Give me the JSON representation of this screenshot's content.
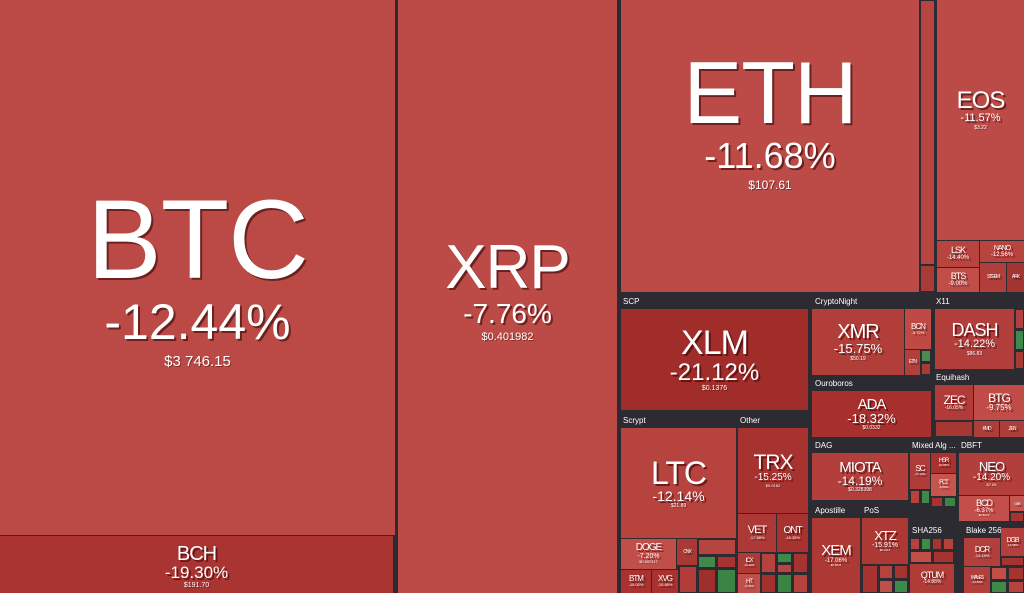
{
  "groups": {
    "scp": "SCP",
    "cryptonight": "CryptoNight",
    "x11": "X11",
    "ouroboros": "Ouroboros",
    "equihash": "Equihash",
    "scrypt": "Scrypt",
    "other": "Other",
    "dag": "DAG",
    "mixed": "Mixed Alg ...",
    "dbft": "DBFT",
    "apostille": "Apostille",
    "pos": "PoS",
    "sha256": "SHA256",
    "blake256": "Blake 256"
  },
  "coins": {
    "btc": {
      "sym": "BTC",
      "chg": "-12.44%",
      "price": "$3 746.15"
    },
    "bch": {
      "sym": "BCH",
      "chg": "-19.30%",
      "price": "$191.70"
    },
    "xrp": {
      "sym": "XRP",
      "chg": "-7.76%",
      "price": "$0.401982"
    },
    "eth": {
      "sym": "ETH",
      "chg": "-11.68%",
      "price": "$107.61"
    },
    "eos": {
      "sym": "EOS",
      "chg": "-11.57%",
      "price": "$3.22"
    },
    "lsk": {
      "sym": "LSK",
      "chg": "-14.40%"
    },
    "nano": {
      "sym": "NANO",
      "chg": "-12.56%"
    },
    "bts": {
      "sym": "BTS",
      "chg": "-9.00%"
    },
    "steem": {
      "sym": "STEEM"
    },
    "ark": {
      "sym": "ARK"
    },
    "xlm": {
      "sym": "XLM",
      "chg": "-21.12%",
      "price": "$0.1376"
    },
    "xmr": {
      "sym": "XMR",
      "chg": "-15.75%",
      "price": "$50.19"
    },
    "bcn": {
      "sym": "BCN",
      "chg": "-9.72%"
    },
    "etn": {
      "sym": "ETN"
    },
    "dash": {
      "sym": "DASH",
      "chg": "-14.22%",
      "price": "$86.83"
    },
    "ada": {
      "sym": "ADA",
      "chg": "-18.32%",
      "price": "$0.0332"
    },
    "zec": {
      "sym": "ZEC",
      "chg": "-16.05%"
    },
    "btg": {
      "sym": "BTG",
      "chg": "-9.75%"
    },
    "kmd": {
      "sym": "KMD"
    },
    "zen": {
      "sym": "ZEN"
    },
    "ltc": {
      "sym": "LTC",
      "chg": "-12.14%",
      "price": "$21.89"
    },
    "doge": {
      "sym": "DOGE",
      "chg": "-7.20%",
      "price": "$0.002117"
    },
    "cnx": {
      "sym": "CNX"
    },
    "btm": {
      "sym": "BTM",
      "chg": "-15.02%"
    },
    "xvg": {
      "sym": "XVG",
      "chg": "-15.85%"
    },
    "trx": {
      "sym": "TRX",
      "chg": "-15.25%",
      "price": "$0.0162"
    },
    "vet": {
      "sym": "VET",
      "chg": "-17.58%"
    },
    "ont": {
      "sym": "ONT",
      "chg": "-18.35%"
    },
    "icx": {
      "sym": "ICX",
      "chg": "-16.48%"
    },
    "ht": {
      "sym": "HT",
      "chg": "-6.76%"
    },
    "miota": {
      "sym": "MIOTA",
      "chg": "-14.19%",
      "price": "$0.328398"
    },
    "sc": {
      "sym": "SC",
      "chg": "-17.14%"
    },
    "hsr": {
      "sym": "HSR",
      "chg": "-20.88%"
    },
    "fct": {
      "sym": "FCT",
      "chg": "-6.54%"
    },
    "neo": {
      "sym": "NEO",
      "chg": "-14.20%",
      "price": "$7.05"
    },
    "gas": {
      "sym": "GAS",
      "chg": "-5.18%"
    },
    "xem": {
      "sym": "XEM",
      "chg": "-17.06%",
      "price": "$0.0541"
    },
    "xtz": {
      "sym": "XTZ",
      "chg": "-15.91%",
      "price": "$0.4113"
    },
    "bcd": {
      "sym": "BCD",
      "chg": "-6.37%",
      "price": "$0.8213"
    },
    "dcr": {
      "sym": "DCR",
      "chg": "-13.15%"
    },
    "dgb": {
      "sym": "DGB",
      "chg": "-13.08%"
    },
    "qtum": {
      "sym": "QTUM",
      "chg": "-14.88%"
    },
    "waves": {
      "sym": "WAVES",
      "chg": "-13.53%"
    }
  },
  "colors": {
    "base_red": "#b94743",
    "mid_red": "#a73633",
    "dark_red": "#97302e",
    "group_bg": "#2b2b31",
    "green": "#3f8a4a"
  }
}
